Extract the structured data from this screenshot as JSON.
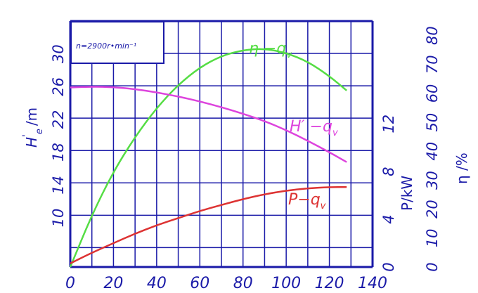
{
  "chart_data": {
    "type": "line",
    "annotation": "n=2900r•min⁻¹",
    "x_axis": {
      "ticks": [
        "0",
        "20",
        "40",
        "60",
        "80",
        "100",
        "120",
        "140"
      ],
      "range": [
        0,
        140
      ]
    },
    "head_axis": {
      "label": "H",
      "label_sub": "e",
      "label_prime": "'",
      "label_unit": "/m",
      "ticks": [
        "10",
        "14",
        "18",
        "22",
        "26",
        "30"
      ],
      "tick_values": [
        10,
        14,
        18,
        22,
        26,
        30
      ]
    },
    "power_axis": {
      "label": "P/kW",
      "ticks": [
        "0",
        "4",
        "8",
        "12"
      ],
      "tick_values": [
        0,
        4,
        8,
        12
      ]
    },
    "efficiency_axis": {
      "label": "η /%",
      "ticks": [
        "0",
        "10",
        "20",
        "30",
        "40",
        "50",
        "60",
        "70",
        "80"
      ],
      "tick_values": [
        0,
        10,
        20,
        30,
        40,
        50,
        60,
        70,
        80
      ]
    },
    "series": [
      {
        "name": "η −q",
        "name_sub": "v",
        "axis": "efficiency",
        "color": "#55dd44",
        "x": [
          0,
          10,
          20,
          30,
          40,
          50,
          60,
          70,
          80,
          90,
          100,
          110,
          120,
          128
        ],
        "y": [
          0,
          18,
          33,
          45,
          55,
          63,
          69,
          73,
          75,
          75.5,
          74,
          71,
          66,
          61
        ]
      },
      {
        "name": "H′ −q",
        "name_sub_e": "e",
        "name_sub": "v",
        "axis": "head",
        "color": "#dd44dd",
        "x": [
          0,
          10,
          20,
          30,
          40,
          50,
          60,
          70,
          80,
          90,
          100,
          110,
          120,
          128
        ],
        "y": [
          25.9,
          26.0,
          25.95,
          25.7,
          25.3,
          24.8,
          24.2,
          23.5,
          22.7,
          21.8,
          20.7,
          19.4,
          18.0,
          16.8
        ]
      },
      {
        "name": "P−q",
        "name_sub": "v",
        "axis": "power",
        "color": "#dd3333",
        "x": [
          0,
          10,
          20,
          30,
          40,
          50,
          60,
          70,
          80,
          90,
          100,
          110,
          120,
          128
        ],
        "y": [
          0.3,
          1.2,
          2.0,
          2.8,
          3.5,
          4.1,
          4.7,
          5.2,
          5.7,
          6.1,
          6.4,
          6.6,
          6.7,
          6.7
        ]
      }
    ],
    "grid": true
  }
}
